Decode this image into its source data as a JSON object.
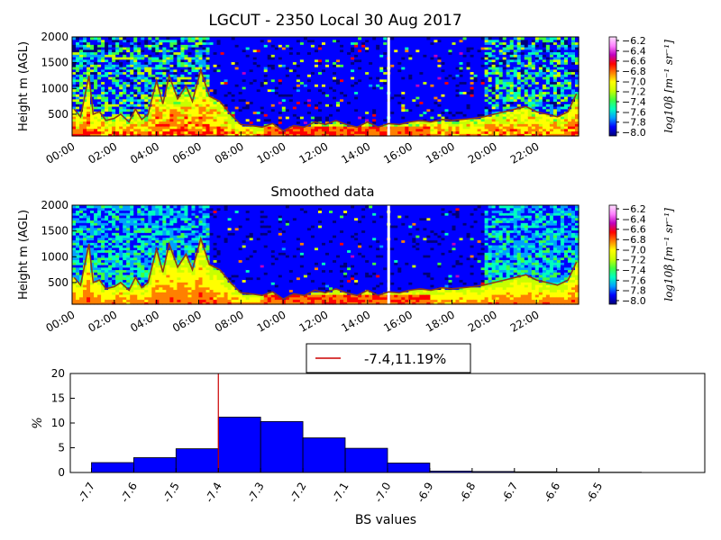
{
  "chart_data": [
    {
      "type": "heatmap",
      "title": "LGCUT - 2350 Local 30 Aug 2017",
      "ylabel": "Height m (AGL)",
      "xlim": [
        "00:00",
        "24:00"
      ],
      "ylim": [
        0,
        2000
      ],
      "x_ticks": [
        "00:00",
        "02:00",
        "04:00",
        "06:00",
        "08:00",
        "10:00",
        "12:00",
        "14:00",
        "16:00",
        "18:00",
        "20:00",
        "22:00"
      ],
      "y_ticks": [
        500,
        1000,
        1500,
        2000
      ],
      "colorbar": {
        "label": "log10β [m⁻¹ sr⁻¹]",
        "range": [
          -8.0,
          -6.2
        ],
        "ticks": [
          "−6.2",
          "−6.4",
          "−6.6",
          "−6.8",
          "−7.0",
          "−7.2",
          "−7.4",
          "−7.6",
          "−7.8",
          "−8.0"
        ],
        "colors": [
          "#00007a",
          "#0000ff",
          "#00a0ff",
          "#00ffc0",
          "#40ff40",
          "#c8ff00",
          "#ffff00",
          "#ff8000",
          "#ff0000",
          "#c000c0",
          "#ff80ff",
          "#ffe0ff"
        ]
      },
      "boundary_layer_height": {
        "color": "#8b3a1a",
        "time_h": [
          0.1,
          0.4,
          0.8,
          1.0,
          1.3,
          1.6,
          2.0,
          2.3,
          2.7,
          3.0,
          3.3,
          3.6,
          4.0,
          4.3,
          4.6,
          5.0,
          5.4,
          5.7,
          6.1,
          6.5,
          7.0,
          7.5,
          8.0,
          8.5,
          9.0,
          9.5,
          10.0,
          10.5,
          11.0,
          11.5,
          12.0,
          12.5,
          13.0,
          13.5,
          14.0,
          14.5,
          15.0,
          15.5,
          16.0,
          16.5,
          17.0,
          17.5,
          18.0,
          18.5,
          19.0,
          19.5,
          20.0,
          20.5,
          21.0,
          21.5,
          22.0,
          22.5,
          23.0,
          23.5,
          23.9
        ],
        "height_m": [
          600,
          450,
          1250,
          500,
          550,
          380,
          420,
          500,
          350,
          600,
          400,
          500,
          1150,
          700,
          1250,
          800,
          1050,
          750,
          1350,
          850,
          750,
          500,
          300,
          280,
          250,
          320,
          180,
          280,
          250,
          350,
          300,
          380,
          300,
          250,
          350,
          250,
          320,
          300,
          350,
          380,
          350,
          400,
          380,
          400,
          420,
          450,
          500,
          550,
          600,
          650,
          550,
          500,
          450,
          550,
          900
        ]
      },
      "gap_time_h": 15.0
    },
    {
      "type": "heatmap",
      "title": "Smoothed data",
      "ylabel": "Height m (AGL)",
      "xlim": [
        "00:00",
        "24:00"
      ],
      "ylim": [
        0,
        2000
      ],
      "x_ticks": [
        "00:00",
        "02:00",
        "04:00",
        "06:00",
        "08:00",
        "10:00",
        "12:00",
        "14:00",
        "16:00",
        "18:00",
        "20:00",
        "22:00"
      ],
      "y_ticks": [
        500,
        1000,
        1500,
        2000
      ],
      "colorbar": {
        "label": "log10β [m⁻¹ sr⁻¹]",
        "range": [
          -8.0,
          -6.2
        ],
        "ticks": [
          "−6.2",
          "−6.4",
          "−6.6",
          "−6.8",
          "−7.0",
          "−7.2",
          "−7.4",
          "−7.6",
          "−7.8",
          "−8.0"
        ]
      }
    },
    {
      "type": "bar",
      "title": "",
      "xlabel": "BS values",
      "ylabel": "%",
      "ylim": [
        0,
        20
      ],
      "xlim": [
        -7.8,
        -6.3
      ],
      "y_ticks": [
        0,
        5,
        10,
        15,
        20
      ],
      "x_ticks": [
        "-7.7",
        "-7.6",
        "-7.5",
        "-7.4",
        "-7.3",
        "-7.2",
        "-7.1",
        "-7.0",
        "-6.9",
        "-6.8",
        "-6.7",
        "-6.6",
        "-6.5"
      ],
      "bin_width": 0.1,
      "bins": [
        {
          "x": -7.7,
          "value": 2.0
        },
        {
          "x": -7.6,
          "value": 3.0
        },
        {
          "x": -7.5,
          "value": 4.8
        },
        {
          "x": -7.4,
          "value": 11.19
        },
        {
          "x": -7.3,
          "value": 10.3
        },
        {
          "x": -7.2,
          "value": 7.0
        },
        {
          "x": -7.1,
          "value": 4.9
        },
        {
          "x": -7.0,
          "value": 1.9
        },
        {
          "x": -6.9,
          "value": 0.3
        },
        {
          "x": -6.8,
          "value": 0.2
        },
        {
          "x": -6.7,
          "value": 0.15
        },
        {
          "x": -6.6,
          "value": 0.1
        },
        {
          "x": -6.5,
          "value": 0.05
        }
      ],
      "bar_color": "#0000ff",
      "marker": {
        "x": -7.4,
        "color": "#cc0000"
      },
      "legend": {
        "label": "-7.4,11.19%",
        "placement": "top-center"
      }
    }
  ]
}
